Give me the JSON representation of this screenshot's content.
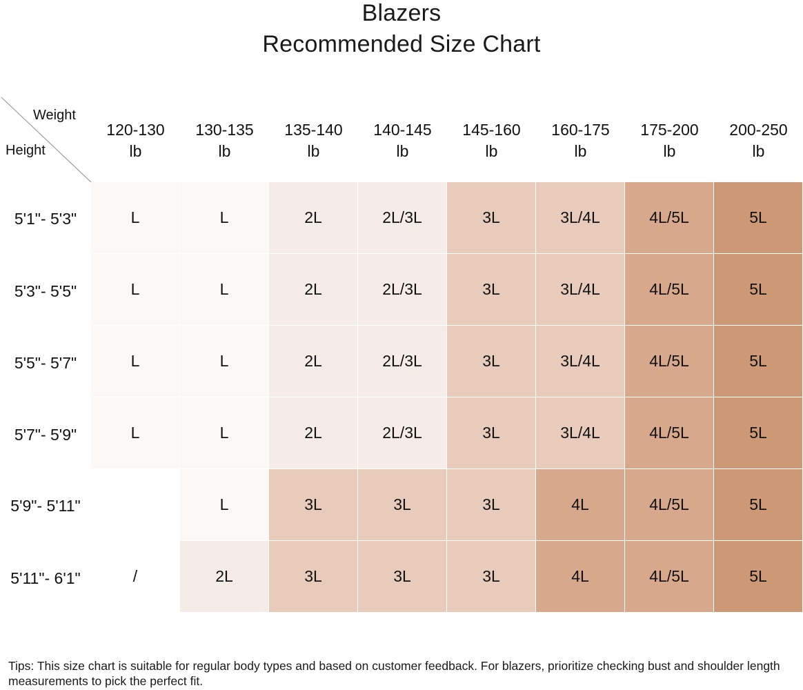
{
  "title_line1": "Blazers",
  "title_line2": "Recommended Size Chart",
  "corner": {
    "weight_label": "Weight",
    "height_label": "Height"
  },
  "weights": [
    {
      "range": "120-130",
      "unit": "lb"
    },
    {
      "range": "130-135",
      "unit": "lb"
    },
    {
      "range": "135-140",
      "unit": "lb"
    },
    {
      "range": "140-145",
      "unit": "lb"
    },
    {
      "range": "145-160",
      "unit": "lb"
    },
    {
      "range": "160-175",
      "unit": "lb"
    },
    {
      "range": "175-200",
      "unit": "lb"
    },
    {
      "range": "200-250",
      "unit": "lb"
    }
  ],
  "heights": [
    "5'1\"- 5'3\"",
    "5'3\"- 5'5\"",
    "5'5\"- 5'7\"",
    "5'7\"- 5'9\"",
    "5'9\"- 5'11\"",
    "5'11\"- 6'1\""
  ],
  "rows": [
    [
      "L",
      "L",
      "2L",
      "2L/3L",
      "3L",
      "3L/4L",
      "4L/5L",
      "5L"
    ],
    [
      "L",
      "L",
      "2L",
      "2L/3L",
      "3L",
      "3L/4L",
      "4L/5L",
      "5L"
    ],
    [
      "L",
      "L",
      "2L",
      "2L/3L",
      "3L",
      "3L/4L",
      "4L/5L",
      "5L"
    ],
    [
      "L",
      "L",
      "2L",
      "2L/3L",
      "3L",
      "3L/4L",
      "4L/5L",
      "5L"
    ],
    [
      "",
      "L",
      "3L",
      "3L",
      "3L",
      "4L",
      "4L/5L",
      "5L"
    ],
    [
      "/",
      "2L",
      "3L",
      "3L",
      "3L",
      "4L",
      "4L/5L",
      "5L"
    ]
  ],
  "size_colors": {
    "L": "#fbf8f6",
    "2L": "#f5ece8",
    "2L/3L": "#f5ece8",
    "3L": "#e8cbbb",
    "3L/4L": "#e8cbbb",
    "4L": "#d8a88d",
    "4L/5L": "#d8a88d",
    "5L": "#cd9876",
    "/": "#ffffff",
    "": "#ffffff"
  },
  "tips": "Tips: This size chart is suitable for regular body types and based on customer feedback. For blazers, prioritize checking bust and shoulder length measurements to pick the perfect fit."
}
